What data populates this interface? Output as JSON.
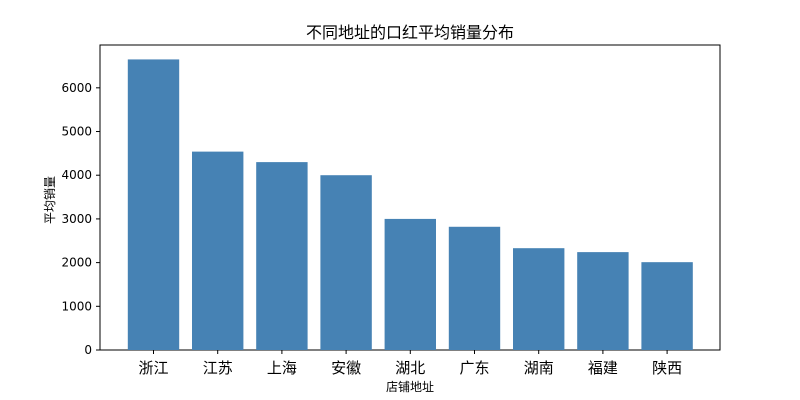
{
  "chart_data": {
    "type": "bar",
    "title": "不同地址的口红平均销量分布",
    "xlabel": "店铺地址",
    "ylabel": "平均销量",
    "categories": [
      "浙江",
      "江苏",
      "上海",
      "安徽",
      "湖北",
      "广东",
      "湖南",
      "福建",
      "陕西"
    ],
    "values": [
      6650,
      4540,
      4300,
      4000,
      3000,
      2820,
      2330,
      2240,
      2010
    ],
    "yticks": [
      0,
      1000,
      2000,
      3000,
      4000,
      5000,
      6000
    ],
    "ylim": [
      0,
      6980
    ],
    "bar_color": "#4682b4",
    "grid": false,
    "legend": "none"
  }
}
